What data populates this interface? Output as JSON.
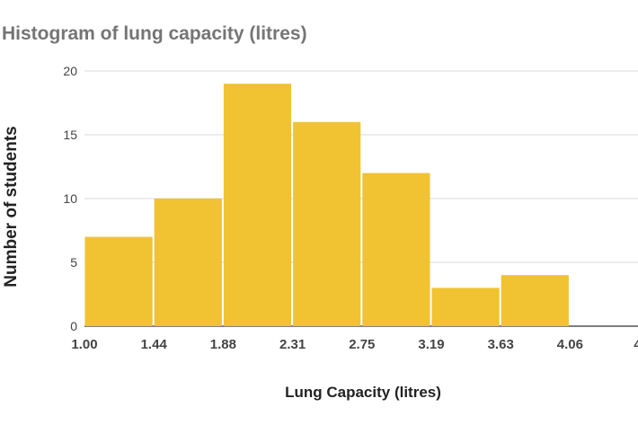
{
  "chart_data": {
    "type": "bar",
    "title": "Histogram of lung capacity (litres)",
    "xlabel": "Lung Capacity (litres)",
    "ylabel": "Number of students",
    "x_ticks": [
      "1.00",
      "1.44",
      "1.88",
      "2.31",
      "2.75",
      "3.19",
      "3.63",
      "4.06",
      "4."
    ],
    "y_ticks": [
      0,
      5,
      10,
      15,
      20
    ],
    "ylim": [
      0,
      20
    ],
    "bins": [
      {
        "start": 1.0,
        "end": 1.44,
        "value": 7
      },
      {
        "start": 1.44,
        "end": 1.88,
        "value": 10
      },
      {
        "start": 1.88,
        "end": 2.31,
        "value": 19
      },
      {
        "start": 2.31,
        "end": 2.75,
        "value": 16
      },
      {
        "start": 2.75,
        "end": 3.19,
        "value": 12
      },
      {
        "start": 3.19,
        "end": 3.63,
        "value": 3
      },
      {
        "start": 3.63,
        "end": 4.06,
        "value": 4
      }
    ],
    "bar_color": "#F1C232",
    "grid": true,
    "legend": "none"
  }
}
